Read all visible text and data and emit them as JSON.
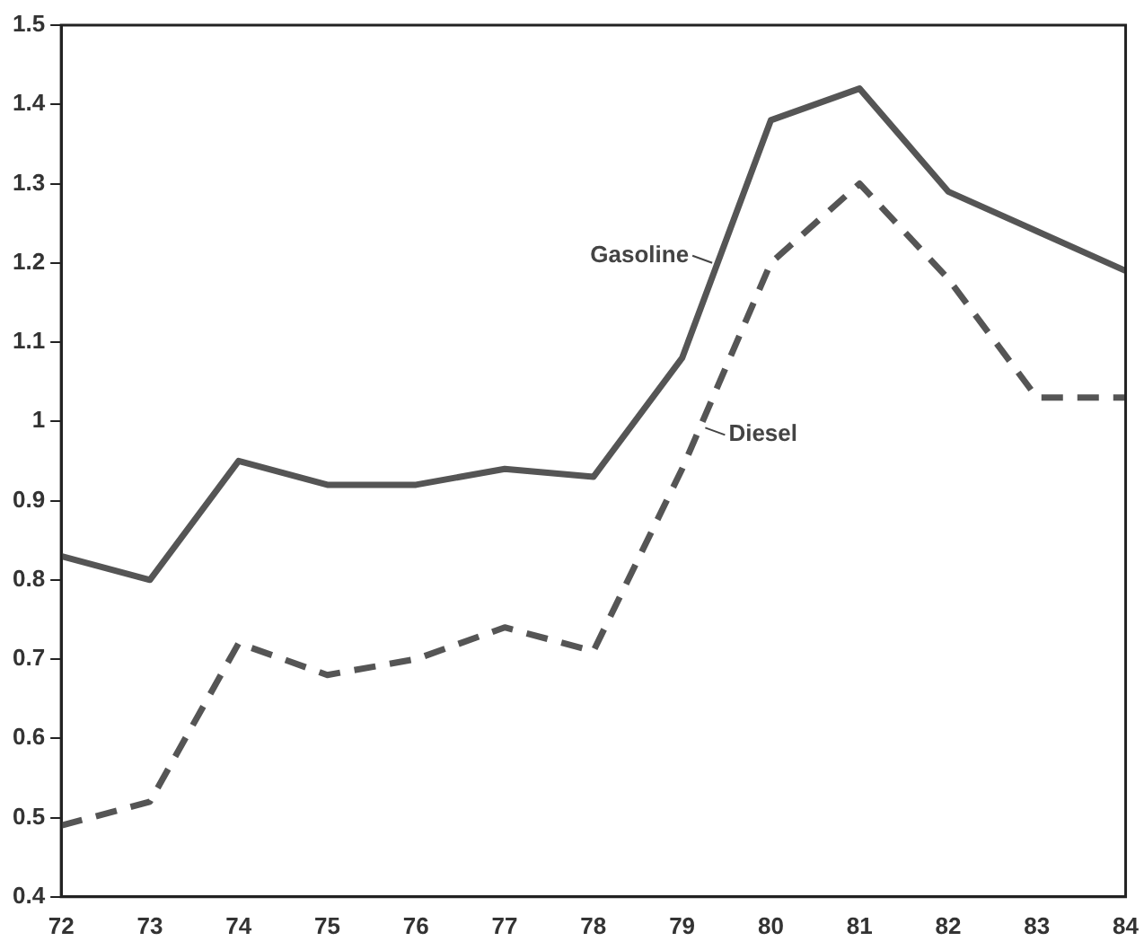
{
  "chart_data": {
    "type": "line",
    "categories": [
      "72",
      "73",
      "74",
      "75",
      "76",
      "77",
      "78",
      "79",
      "80",
      "81",
      "82",
      "83",
      "84"
    ],
    "series": [
      {
        "name": "Gasoline",
        "color": "#555555",
        "line_style": "solid",
        "values": [
          0.83,
          0.8,
          0.95,
          0.92,
          0.92,
          0.94,
          0.93,
          1.08,
          1.38,
          1.42,
          1.29,
          1.24,
          1.19
        ]
      },
      {
        "name": "Diesel",
        "color": "#555555",
        "line_style": "dashed",
        "values": [
          0.49,
          0.52,
          0.72,
          0.68,
          0.7,
          0.74,
          0.71,
          0.94,
          1.2,
          1.3,
          1.18,
          1.03,
          1.03
        ]
      }
    ],
    "ylim": [
      0.4,
      1.5
    ],
    "yticks": [
      0.4,
      0.5,
      0.6,
      0.7,
      0.8,
      0.9,
      1,
      1.1,
      1.2,
      1.3,
      1.4,
      1.5
    ],
    "grid": false,
    "legend": false,
    "marker": "none"
  }
}
